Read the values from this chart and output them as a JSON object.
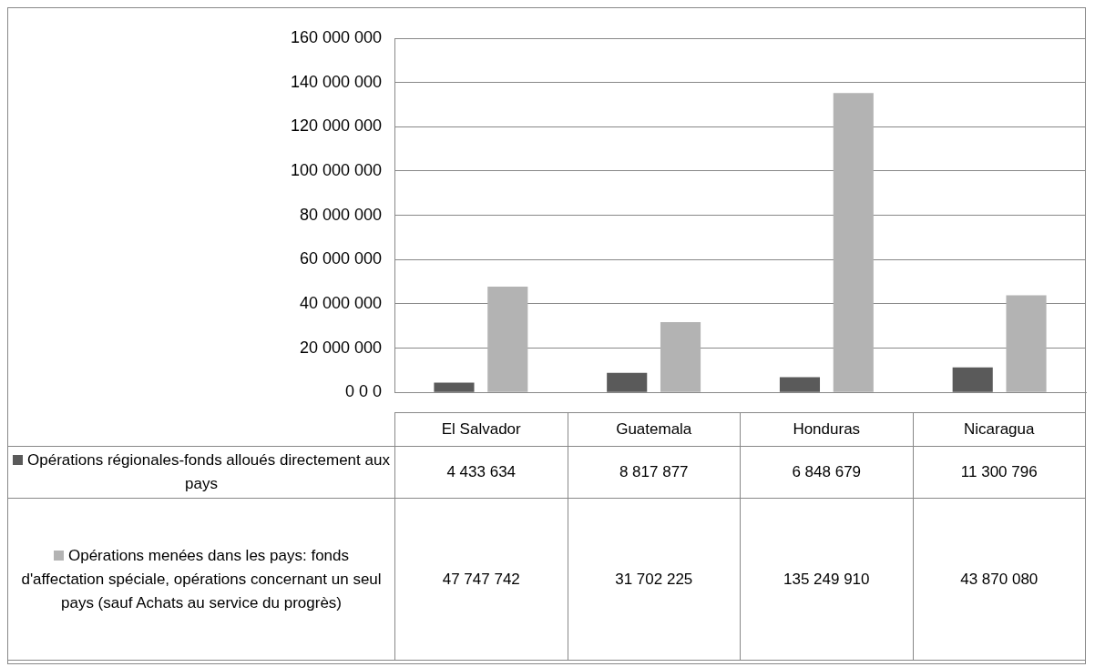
{
  "chart_data": {
    "type": "bar",
    "categories": [
      "El Salvador",
      "Guatemala",
      "Honduras",
      "Nicaragua"
    ],
    "series": [
      {
        "name": "Opérations régionales-fonds alloués directement aux pays",
        "color": "#5a5a5a",
        "values": [
          4433634,
          8817877,
          6848679,
          11300796
        ],
        "value_labels": [
          "4 433 634",
          "8 817 877",
          "6 848 679",
          "11 300 796"
        ]
      },
      {
        "name": "Opérations menées dans les pays: fonds d'affectation spéciale, opérations concernant un seul pays (sauf Achats au service du progrès)",
        "color": "#b3b3b3",
        "values": [
          47747742,
          31702225,
          135249910,
          43870080
        ],
        "value_labels": [
          "47 747 742",
          "31 702 225",
          "135 249 910",
          "43 870 080"
        ]
      }
    ],
    "ylim": [
      0,
      160000000
    ],
    "yticks": [
      {
        "value": 0,
        "label": "0 0 0"
      },
      {
        "value": 20000000,
        "label": "20 000 000"
      },
      {
        "value": 40000000,
        "label": "40 000 000"
      },
      {
        "value": 60000000,
        "label": "60 000 000"
      },
      {
        "value": 80000000,
        "label": "80 000 000"
      },
      {
        "value": 100000000,
        "label": "100 000 000"
      },
      {
        "value": 120000000,
        "label": "120 000 000"
      },
      {
        "value": 140000000,
        "label": "140 000 000"
      },
      {
        "value": 160000000,
        "label": "160 000 000"
      }
    ],
    "grid": "y",
    "legend": "bottom"
  }
}
